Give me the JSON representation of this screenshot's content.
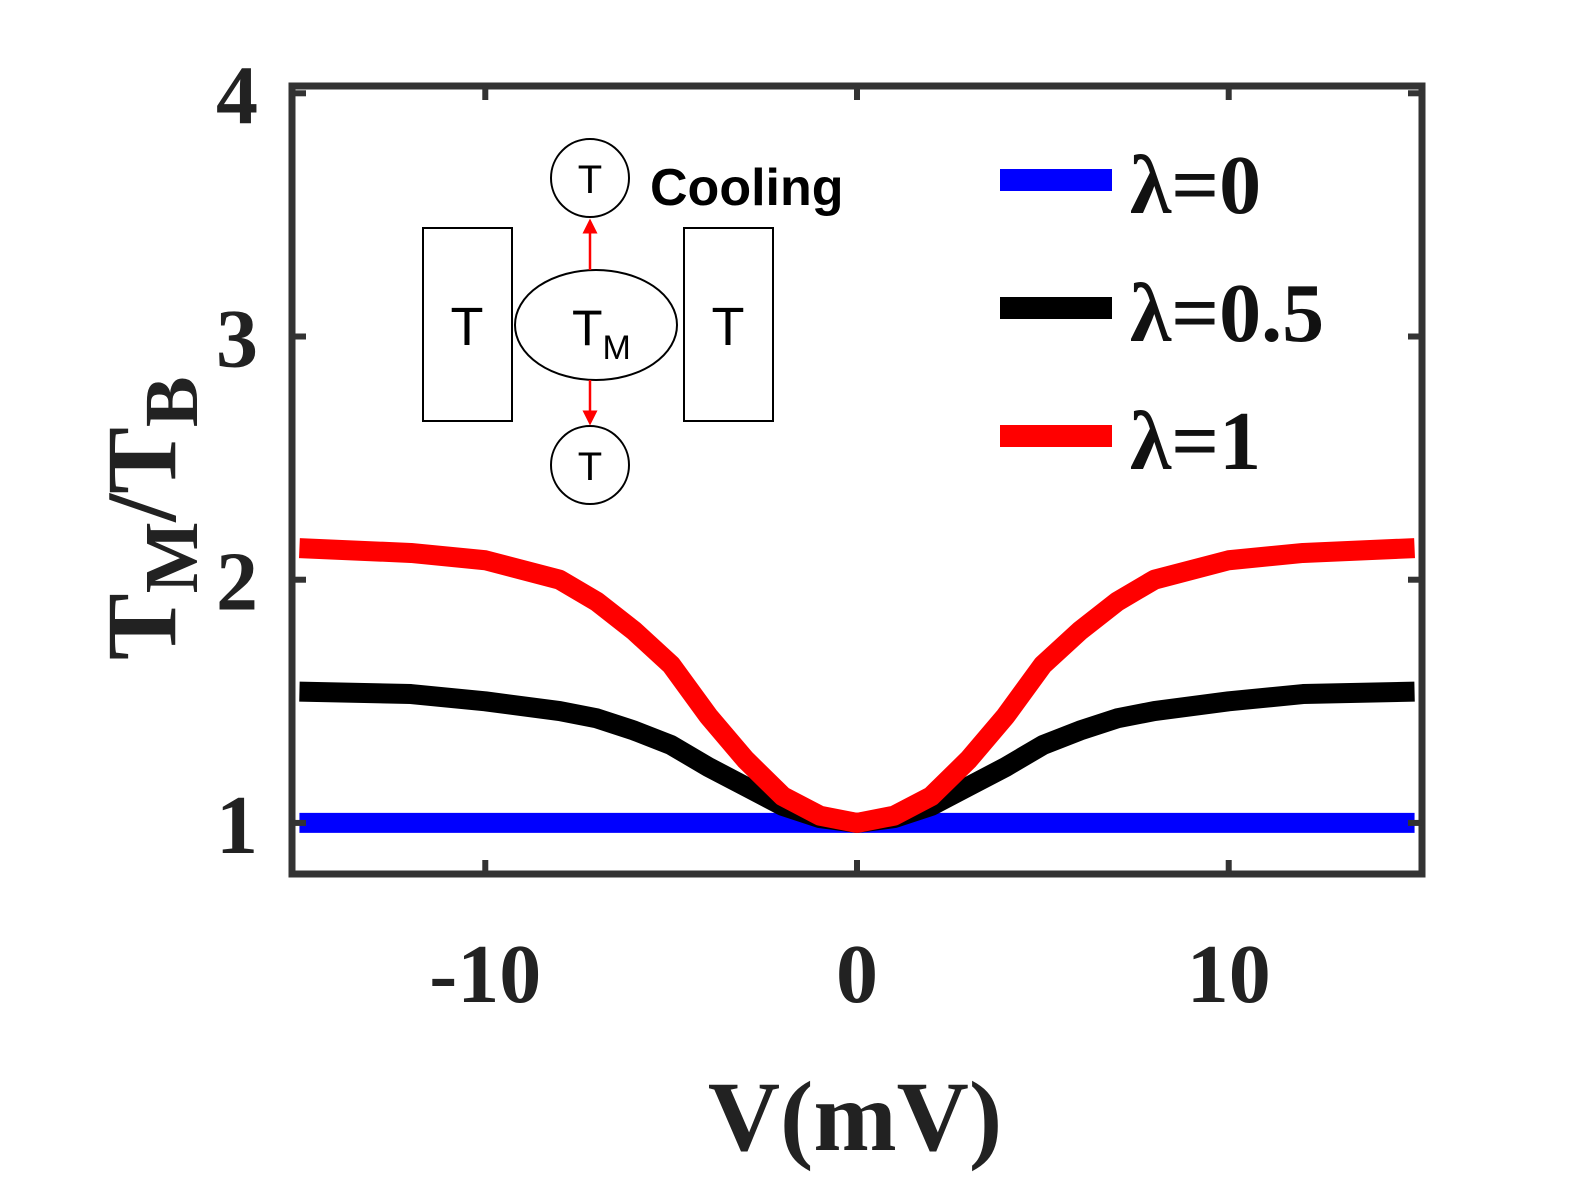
{
  "chart_data": {
    "type": "line",
    "title": "",
    "xlabel": "V(mV)",
    "ylabel": {
      "main": "T",
      "sub1": "M",
      "slash": "/T",
      "sub2": "B"
    },
    "xlim": [
      -15.2,
      15.2
    ],
    "ylim": [
      0.79,
      4.03
    ],
    "xticks": [
      -10,
      0,
      10
    ],
    "xtick_labels": [
      "-10",
      "0",
      "10"
    ],
    "yticks": [
      1,
      2,
      3,
      4
    ],
    "ytick_labels": [
      "1",
      "2",
      "3",
      "4"
    ],
    "grid": false,
    "legend_position": "top-right",
    "x": [
      -15,
      -12,
      -10,
      -8,
      -7,
      -6,
      -5,
      -4,
      -3,
      -2,
      -1,
      0,
      1,
      2,
      3,
      4,
      5,
      6,
      7,
      8,
      10,
      12,
      15
    ],
    "series": [
      {
        "name": "λ=0",
        "color": "#0000ff",
        "values": [
          1,
          1,
          1,
          1,
          1,
          1,
          1,
          1,
          1,
          1,
          1,
          1,
          1,
          1,
          1,
          1,
          1,
          1,
          1,
          1,
          1,
          1,
          1
        ]
      },
      {
        "name": "λ=0.5",
        "color": "#000000",
        "values": [
          1.54,
          1.53,
          1.5,
          1.46,
          1.43,
          1.38,
          1.32,
          1.23,
          1.15,
          1.07,
          1.02,
          1.0,
          1.02,
          1.07,
          1.15,
          1.23,
          1.32,
          1.38,
          1.43,
          1.46,
          1.5,
          1.53,
          1.54
        ]
      },
      {
        "name": "λ=1",
        "color": "#ff0000",
        "values": [
          2.13,
          2.11,
          2.08,
          2.0,
          1.91,
          1.79,
          1.65,
          1.44,
          1.26,
          1.11,
          1.03,
          1.0,
          1.03,
          1.11,
          1.26,
          1.44,
          1.65,
          1.79,
          1.91,
          2.0,
          2.08,
          2.11,
          2.13
        ]
      }
    ],
    "inset": {
      "label": "Cooling",
      "top_node": "T",
      "bottom_node": "T",
      "left_lead": "T",
      "right_lead": "T",
      "center_main": "T",
      "center_sub": "M",
      "arrow_color": "#ff0000"
    }
  }
}
